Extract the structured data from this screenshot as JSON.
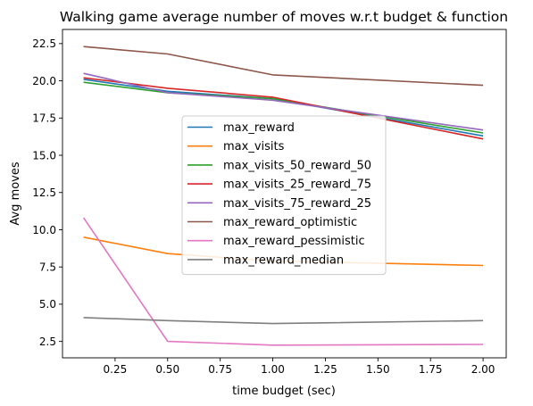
{
  "chart_data": {
    "type": "line",
    "title": "Walking game average number of moves w.r.t budget & function",
    "xlabel": "time budget (sec)",
    "ylabel": "Avg moves",
    "xlim": [
      0.0,
      2.11
    ],
    "ylim": [
      1.4,
      23.45
    ],
    "xticks": [
      0.25,
      0.5,
      0.75,
      1.0,
      1.25,
      1.5,
      1.75,
      2.0
    ],
    "xtick_labels": [
      "0.25",
      "0.50",
      "0.75",
      "1.00",
      "1.25",
      "1.50",
      "1.75",
      "2.00"
    ],
    "yticks": [
      2.5,
      5.0,
      7.5,
      10.0,
      12.5,
      15.0,
      17.5,
      20.0,
      22.5
    ],
    "ytick_labels": [
      "2.5",
      "5.0",
      "7.5",
      "10.0",
      "12.5",
      "15.0",
      "17.5",
      "20.0",
      "22.5"
    ],
    "grid": false,
    "legend_position": "center",
    "x": [
      0.1,
      0.5,
      1.0,
      2.0
    ],
    "series": [
      {
        "name": "max_reward",
        "color": "#1f77b4",
        "values": [
          20.1,
          19.3,
          18.8,
          16.3
        ]
      },
      {
        "name": "max_visits",
        "color": "#ff7f0e",
        "values": [
          9.5,
          8.4,
          7.9,
          7.6
        ]
      },
      {
        "name": "max_visits_50_reward_50",
        "color": "#2ca02c",
        "values": [
          19.9,
          19.2,
          18.8,
          16.5
        ]
      },
      {
        "name": "max_visits_25_reward_75",
        "color": "#d62728",
        "values": [
          20.2,
          19.5,
          18.9,
          16.1
        ]
      },
      {
        "name": "max_visits_75_reward_25",
        "color": "#9467bd",
        "values": [
          20.5,
          19.2,
          18.7,
          16.7
        ]
      },
      {
        "name": "max_reward_optimistic",
        "color": "#8c564b",
        "values": [
          22.3,
          21.8,
          20.4,
          19.7
        ]
      },
      {
        "name": "max_reward_pessimistic",
        "color": "#e377c2",
        "values": [
          10.8,
          2.5,
          2.25,
          2.3
        ]
      },
      {
        "name": "max_reward_median",
        "color": "#7f7f7f",
        "values": [
          4.1,
          3.9,
          3.7,
          3.9
        ]
      }
    ]
  }
}
